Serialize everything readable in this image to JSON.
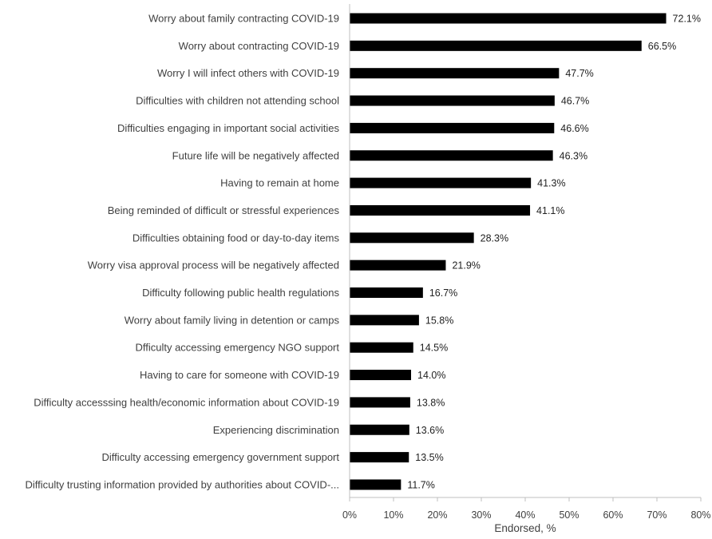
{
  "chart_data": {
    "type": "bar",
    "orientation": "horizontal",
    "title": "",
    "xlabel": "Endorsed, %",
    "ylabel": "",
    "xlim": [
      0,
      80
    ],
    "xticks": [
      0,
      10,
      20,
      30,
      40,
      50,
      60,
      70,
      80
    ],
    "tick_labels": [
      "0%",
      "10%",
      "20%",
      "30%",
      "40%",
      "50%",
      "60%",
      "70%",
      "80%"
    ],
    "grid": false,
    "bar_color": "#000000",
    "categories": [
      "Worry about family contracting COVID-19",
      "Worry about contracting COVID-19",
      "Worry I will infect others with COVID-19",
      "Difficulties with children not attending school",
      "Difficulties engaging in important social activities",
      "Future life will be negatively affected",
      "Having to remain at home",
      "Being reminded of difficult or stressful experiences",
      "Difficulties obtaining food or day-to-day items",
      "Worry visa approval process will be negatively affected",
      "Difficulty following public health regulations",
      "Worry about family living in detention or camps",
      "Dfficulty accessing emergency NGO support",
      "Having to care for someone with COVID-19",
      "Difficulty accesssing health/economic information about COVID-19",
      "Experiencing discrimination",
      "Difficulty accessing emergency government support",
      "Difficulty trusting information provided by authorities about COVID-..."
    ],
    "values": [
      72.1,
      66.5,
      47.7,
      46.7,
      46.6,
      46.3,
      41.3,
      41.1,
      28.3,
      21.9,
      16.7,
      15.8,
      14.5,
      14.0,
      13.8,
      13.6,
      13.5,
      11.7
    ],
    "value_labels": [
      "72.1%",
      "66.5%",
      "47.7%",
      "46.7%",
      "46.6%",
      "46.3%",
      "41.3%",
      "41.1%",
      "28.3%",
      "21.9%",
      "16.7%",
      "15.8%",
      "14.5%",
      "14.0%",
      "13.8%",
      "13.6%",
      "13.5%",
      "11.7%"
    ]
  }
}
